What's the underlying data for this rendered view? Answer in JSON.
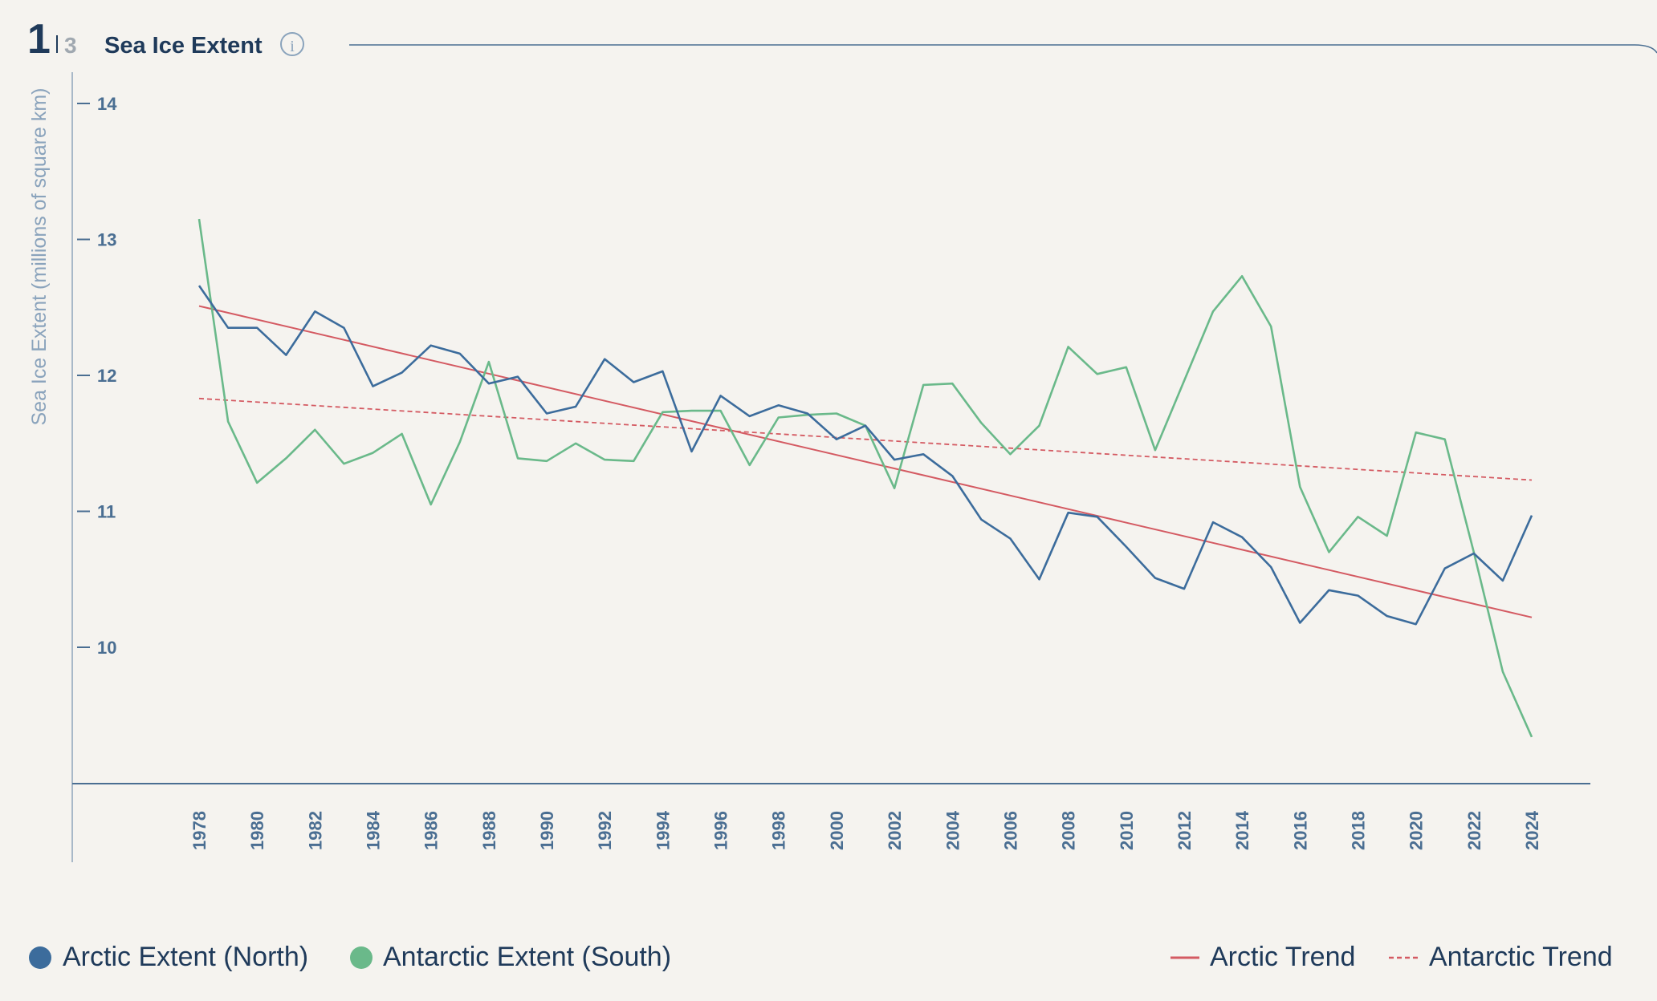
{
  "header": {
    "page_current": "1",
    "page_total": "3",
    "title": "Sea Ice Extent",
    "info_icon": "info-icon"
  },
  "legend": {
    "arctic_label": "Arctic Extent (North)",
    "antarctic_label": "Antarctic Extent (South)",
    "arctic_trend_label": "Arctic Trend",
    "antarctic_trend_label": "Antarctic Trend"
  },
  "colors": {
    "arctic": "#3c6c9c",
    "antarctic": "#6ab98a",
    "trend": "#d45a62",
    "axis": "#4a6e92",
    "axis_label": "#8aa3bc",
    "text": "#1f3a5a",
    "background": "#f5f3ef"
  },
  "chart_data": {
    "type": "line",
    "title": "Sea Ice Extent",
    "ylabel": "Sea Ice Extent (millions of square km)",
    "xlabel": "",
    "ylim": [
      9.0,
      14.2
    ],
    "yticks": [
      10,
      11,
      12,
      13,
      14
    ],
    "xtick_labels": [
      "1978",
      "1980",
      "1982",
      "1984",
      "1986",
      "1988",
      "1990",
      "1992",
      "1994",
      "1996",
      "1998",
      "2000",
      "2002",
      "2004",
      "2006",
      "2008",
      "2010",
      "2012",
      "2014",
      "2016",
      "2018",
      "2020",
      "2022",
      "2024"
    ],
    "x": [
      1978,
      1979,
      1980,
      1981,
      1982,
      1983,
      1984,
      1985,
      1986,
      1987,
      1988,
      1989,
      1990,
      1991,
      1992,
      1993,
      1994,
      1995,
      1996,
      1997,
      1998,
      1999,
      2000,
      2001,
      2002,
      2003,
      2004,
      2005,
      2006,
      2007,
      2008,
      2009,
      2010,
      2011,
      2012,
      2013,
      2014,
      2015,
      2016,
      2017,
      2018,
      2019,
      2020,
      2021,
      2022,
      2023,
      2024
    ],
    "series": [
      {
        "name": "Arctic Extent (North)",
        "values": [
          12.66,
          12.35,
          12.35,
          12.15,
          12.47,
          12.35,
          11.92,
          12.02,
          12.22,
          12.16,
          11.94,
          11.99,
          11.72,
          11.77,
          12.12,
          11.95,
          12.03,
          11.44,
          11.85,
          11.7,
          11.78,
          11.72,
          11.53,
          11.63,
          11.38,
          11.42,
          11.26,
          10.94,
          10.8,
          10.5,
          10.99,
          10.96,
          10.74,
          10.51,
          10.43,
          10.92,
          10.81,
          10.59,
          10.18,
          10.42,
          10.38,
          10.23,
          10.17,
          10.58,
          10.69,
          10.49,
          10.97
        ]
      },
      {
        "name": "Antarctic Extent (South)",
        "values": [
          13.15,
          11.66,
          11.21,
          11.39,
          11.6,
          11.35,
          11.43,
          11.57,
          11.05,
          11.51,
          12.1,
          11.39,
          11.37,
          11.5,
          11.38,
          11.37,
          11.73,
          11.74,
          11.74,
          11.34,
          11.69,
          11.71,
          11.72,
          11.63,
          11.17,
          11.93,
          11.94,
          11.65,
          11.42,
          11.63,
          12.21,
          12.01,
          12.06,
          11.45,
          11.96,
          12.47,
          12.73,
          12.36,
          11.18,
          10.7,
          10.96,
          10.82,
          11.58,
          11.53,
          10.7,
          9.82,
          9.34
        ]
      },
      {
        "name": "Arctic Trend",
        "style": "solid",
        "start": [
          1978,
          12.51
        ],
        "end": [
          2024,
          10.22
        ]
      },
      {
        "name": "Antarctic Trend",
        "style": "dashed",
        "start": [
          1978,
          11.83
        ],
        "end": [
          2024,
          11.23
        ]
      }
    ],
    "grid": false,
    "legend_position": "bottom"
  }
}
